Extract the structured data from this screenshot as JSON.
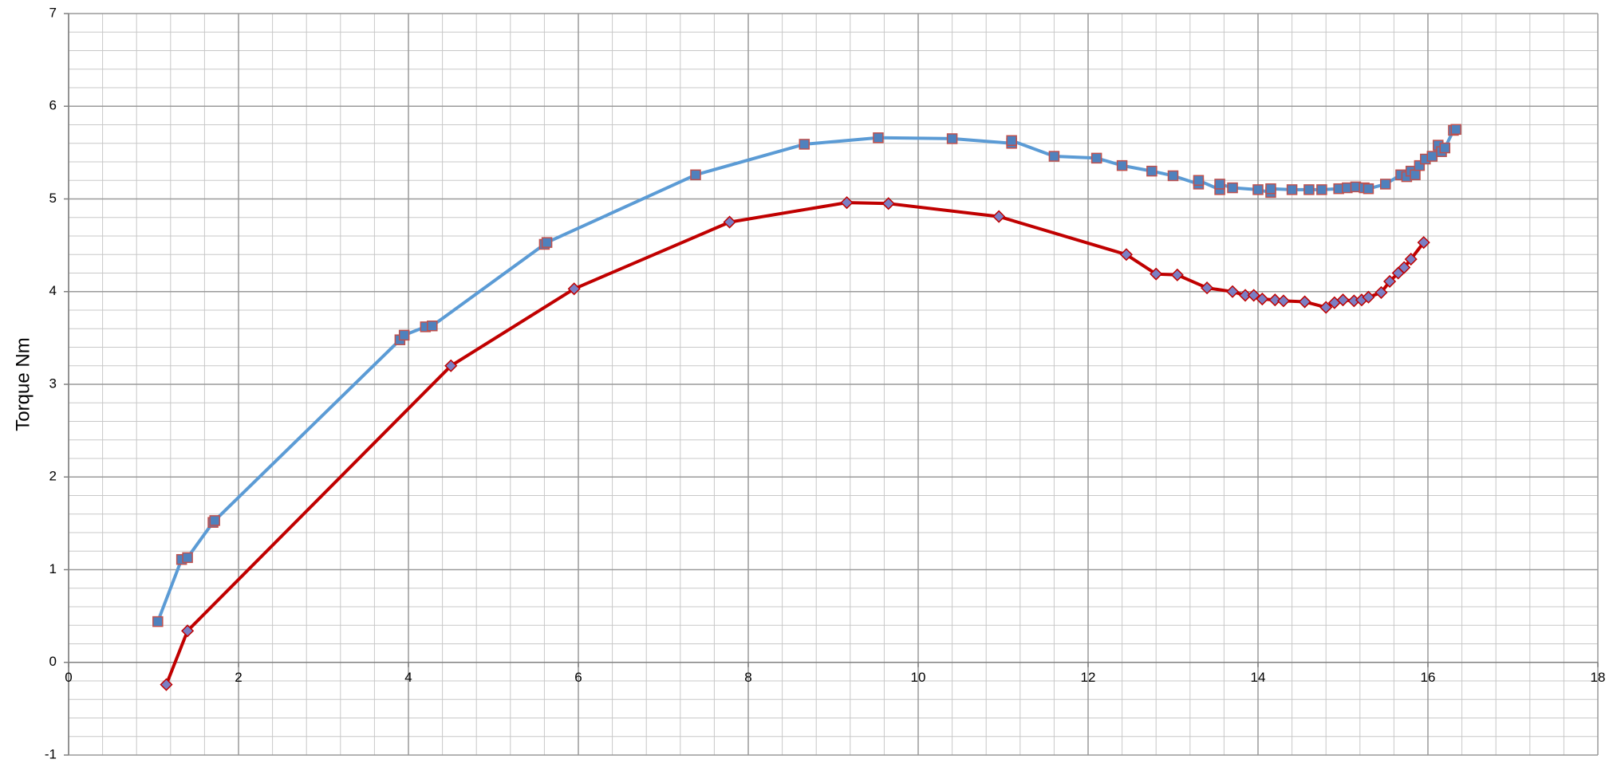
{
  "chart_data": {
    "type": "line",
    "title": "",
    "xlabel": "",
    "ylabel": "Torque Nm",
    "xlim": [
      0,
      18
    ],
    "ylim": [
      -1,
      7
    ],
    "x_ticks": [
      0,
      2,
      4,
      6,
      8,
      10,
      12,
      14,
      16,
      18
    ],
    "y_ticks": [
      -1,
      0,
      1,
      2,
      3,
      4,
      5,
      6,
      7
    ],
    "minor_x_step": 0.4,
    "minor_y_step": 0.2,
    "grid": true,
    "legend": "none",
    "colors": {
      "major_grid": "#9a9a9a",
      "minor_grid": "#c8c8c8",
      "axis": "#808080",
      "series_1_line": "#5b9bd5",
      "series_1_marker_fill": "#4f81bd",
      "series_1_marker_edge": "#c0504d",
      "series_2_line": "#c00000",
      "series_2_marker_fill": "#7b7fc4",
      "series_2_marker_edge": "#c00000"
    },
    "series": [
      {
        "marker": "square",
        "points": [
          [
            1.05,
            0.44
          ],
          [
            1.33,
            1.11
          ],
          [
            1.4,
            1.13
          ],
          [
            1.7,
            1.51
          ],
          [
            1.72,
            1.53
          ],
          [
            3.9,
            3.48
          ],
          [
            3.95,
            3.53
          ],
          [
            4.2,
            3.62
          ],
          [
            4.28,
            3.63
          ],
          [
            5.6,
            4.51
          ],
          [
            5.63,
            4.53
          ],
          [
            7.38,
            5.26
          ],
          [
            8.66,
            5.59
          ],
          [
            9.53,
            5.66
          ],
          [
            10.4,
            5.65
          ],
          [
            11.1,
            5.6
          ],
          [
            11.1,
            5.63
          ],
          [
            11.6,
            5.46
          ],
          [
            12.1,
            5.44
          ],
          [
            12.4,
            5.36
          ],
          [
            12.75,
            5.3
          ],
          [
            13.0,
            5.25
          ],
          [
            13.3,
            5.16
          ],
          [
            13.3,
            5.2
          ],
          [
            13.55,
            5.1
          ],
          [
            13.55,
            5.16
          ],
          [
            13.7,
            5.12
          ],
          [
            14.0,
            5.1
          ],
          [
            14.15,
            5.07
          ],
          [
            14.15,
            5.11
          ],
          [
            14.4,
            5.1
          ],
          [
            14.6,
            5.1
          ],
          [
            14.75,
            5.1
          ],
          [
            14.95,
            5.11
          ],
          [
            15.05,
            5.12
          ],
          [
            15.15,
            5.13
          ],
          [
            15.25,
            5.12
          ],
          [
            15.3,
            5.11
          ],
          [
            15.5,
            5.16
          ],
          [
            15.68,
            5.26
          ],
          [
            15.75,
            5.24
          ],
          [
            15.8,
            5.3
          ],
          [
            15.85,
            5.26
          ],
          [
            15.9,
            5.36
          ],
          [
            15.97,
            5.43
          ],
          [
            16.05,
            5.46
          ],
          [
            16.12,
            5.58
          ],
          [
            16.16,
            5.51
          ],
          [
            16.2,
            5.55
          ],
          [
            16.3,
            5.74
          ],
          [
            16.33,
            5.75
          ]
        ]
      },
      {
        "marker": "diamond",
        "points": [
          [
            1.15,
            -0.24
          ],
          [
            1.4,
            0.34
          ],
          [
            4.5,
            3.2
          ],
          [
            5.95,
            4.03
          ],
          [
            7.78,
            4.75
          ],
          [
            9.16,
            4.96
          ],
          [
            9.65,
            4.95
          ],
          [
            10.95,
            4.81
          ],
          [
            12.45,
            4.4
          ],
          [
            12.8,
            4.19
          ],
          [
            13.05,
            4.18
          ],
          [
            13.4,
            4.04
          ],
          [
            13.7,
            4.0
          ],
          [
            13.85,
            3.96
          ],
          [
            13.95,
            3.96
          ],
          [
            14.05,
            3.92
          ],
          [
            14.2,
            3.91
          ],
          [
            14.3,
            3.9
          ],
          [
            14.55,
            3.89
          ],
          [
            14.8,
            3.83
          ],
          [
            14.9,
            3.88
          ],
          [
            15.0,
            3.91
          ],
          [
            15.13,
            3.9
          ],
          [
            15.22,
            3.91
          ],
          [
            15.3,
            3.94
          ],
          [
            15.45,
            3.99
          ],
          [
            15.55,
            4.11
          ],
          [
            15.65,
            4.2
          ],
          [
            15.72,
            4.26
          ],
          [
            15.8,
            4.35
          ],
          [
            15.95,
            4.53
          ]
        ]
      }
    ]
  }
}
